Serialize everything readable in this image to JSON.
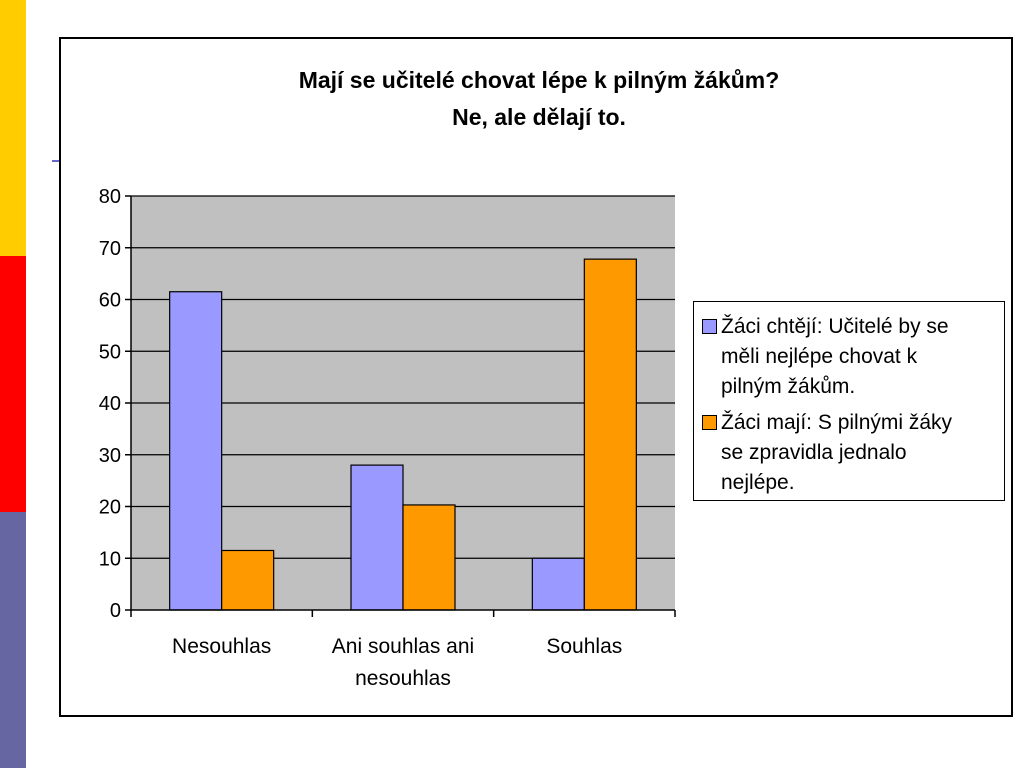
{
  "colors": {
    "strip_yellow": "#FFCC00",
    "strip_red": "#FF0000",
    "strip_blue": "#6666A3",
    "deco_line": "#6666CC",
    "plot_background": "#C0C0C0",
    "series_1": "#9999FF",
    "series_2": "#FF9900"
  },
  "chart_data": {
    "type": "bar",
    "title_lines": [
      "Mají se učitelé chovat lépe k pilným žákům?",
      "Ne, ale dělají to."
    ],
    "categories": [
      [
        "Nesouhlas"
      ],
      [
        "Ani souhlas ani",
        "nesouhlas"
      ],
      [
        "Souhlas"
      ]
    ],
    "series": [
      {
        "name": "Žáci chtějí: Učitelé by se měli nejlépe chovat k pilným žákům.",
        "name_lines": [
          "Žáci chtějí: Učitelé by se",
          "měli nejlépe chovat k",
          "pilným žákům."
        ],
        "values": [
          61.5,
          28,
          10
        ]
      },
      {
        "name": "Žáci mají: S pilnými žáky se zpravidla jednalo nejlépe.",
        "name_lines": [
          "Žáci mají: S pilnými žáky",
          "se zpravidla jednalo",
          "nejlépe."
        ],
        "values": [
          11.5,
          20.3,
          67.8
        ]
      }
    ],
    "ylim": [
      0,
      80
    ],
    "yticks": [
      0,
      10,
      20,
      30,
      40,
      50,
      60,
      70,
      80
    ],
    "grid": true,
    "legend_position": "right"
  }
}
